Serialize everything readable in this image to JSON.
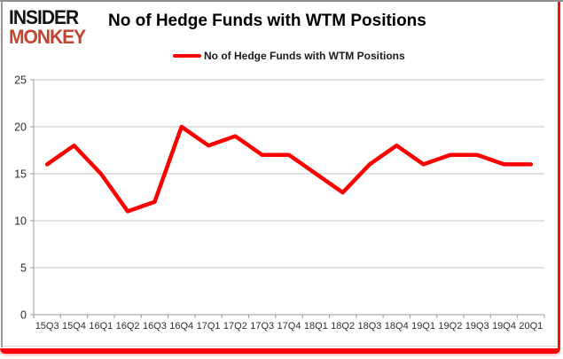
{
  "header": {
    "logo_line1": "INSIDER",
    "logo_line2": "MONKEY",
    "title": "No of Hedge Funds with WTM Positions"
  },
  "legend": {
    "label": "No of Hedge Funds with WTM Positions"
  },
  "colors": {
    "accent_red": "#ff0000",
    "logo_black": "#141414",
    "logo_red": "#c2442e",
    "top_border": "#8f8f8f",
    "left_border": "#a59494",
    "frame_red": "#ff0a0a"
  },
  "chart_data": {
    "type": "line",
    "title": "No of Hedge Funds with WTM Positions",
    "categories": [
      "15Q3",
      "15Q4",
      "16Q1",
      "16Q2",
      "16Q3",
      "16Q4",
      "17Q1",
      "17Q2",
      "17Q3",
      "17Q4",
      "18Q1",
      "18Q2",
      "18Q3",
      "18Q4",
      "19Q1",
      "19Q2",
      "19Q3",
      "19Q4",
      "20Q1"
    ],
    "series": [
      {
        "name": "No of Hedge Funds with WTM Positions",
        "values": [
          16,
          18,
          15,
          11,
          12,
          20,
          18,
          19,
          17,
          17,
          15,
          13,
          16,
          18,
          16,
          17,
          17,
          16,
          16
        ]
      }
    ],
    "xlabel": "",
    "ylabel": "",
    "ylim": [
      0,
      25
    ],
    "yticks": [
      0,
      5,
      10,
      15,
      20,
      25
    ],
    "grid": true,
    "legend_position": "top-center",
    "colors": {
      "line": "#ff0000",
      "grid": "#c6c6c6",
      "axis": "#9a9a9a",
      "tick_text": "#2e2e2e"
    }
  }
}
